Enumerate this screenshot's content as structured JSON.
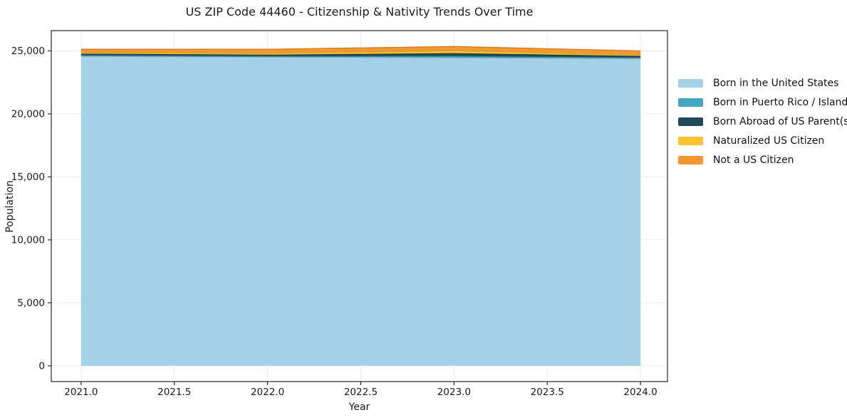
{
  "figure": {
    "background": "#ffffff"
  },
  "colors": {
    "grid": "#ebebeb",
    "spine": "#2a2a2a",
    "tick_text": "#1a1a1a",
    "background": "#ffffff"
  },
  "chart_data": {
    "type": "area",
    "stacked": true,
    "title": "US ZIP Code 44460 - Citizenship & Nativity Trends Over Time",
    "xlabel": "Year",
    "ylabel": "Population",
    "x": [
      2021,
      2022,
      2023,
      2024
    ],
    "series": [
      {
        "name": "Born in the United States",
        "color": "#a3d2e8",
        "values": [
          24570,
          24510,
          24450,
          24380
        ]
      },
      {
        "name": "Born in Puerto Rico / Islands",
        "color": "#45a6c3",
        "values": [
          55,
          40,
          110,
          55
        ]
      },
      {
        "name": "Born Abroad of US Parent(s)",
        "color": "#1f4a5a",
        "values": [
          115,
          115,
          225,
          130
        ]
      },
      {
        "name": "Naturalized US Citizen",
        "color": "#fcc330",
        "values": [
          110,
          145,
          225,
          115
        ]
      },
      {
        "name": "Not a US Citizen",
        "color": "#f79630",
        "values": [
          280,
          320,
          340,
          320
        ]
      }
    ],
    "x_ticks": [
      2021.0,
      2021.5,
      2022.0,
      2022.5,
      2023.0,
      2023.5,
      2024.0
    ],
    "x_tick_labels": [
      "2021.0",
      "2021.5",
      "2022.0",
      "2022.5",
      "2023.0",
      "2023.5",
      "2024.0"
    ],
    "y_ticks": [
      0,
      5000,
      10000,
      15000,
      20000,
      25000
    ],
    "y_tick_labels": [
      "0",
      "5,000",
      "10,000",
      "15,000",
      "20,000",
      "25,000"
    ],
    "xlim": [
      2020.84,
      2024.145
    ],
    "ylim": [
      -1250,
      26610
    ],
    "grid": true,
    "legend_position": "right-outside"
  }
}
